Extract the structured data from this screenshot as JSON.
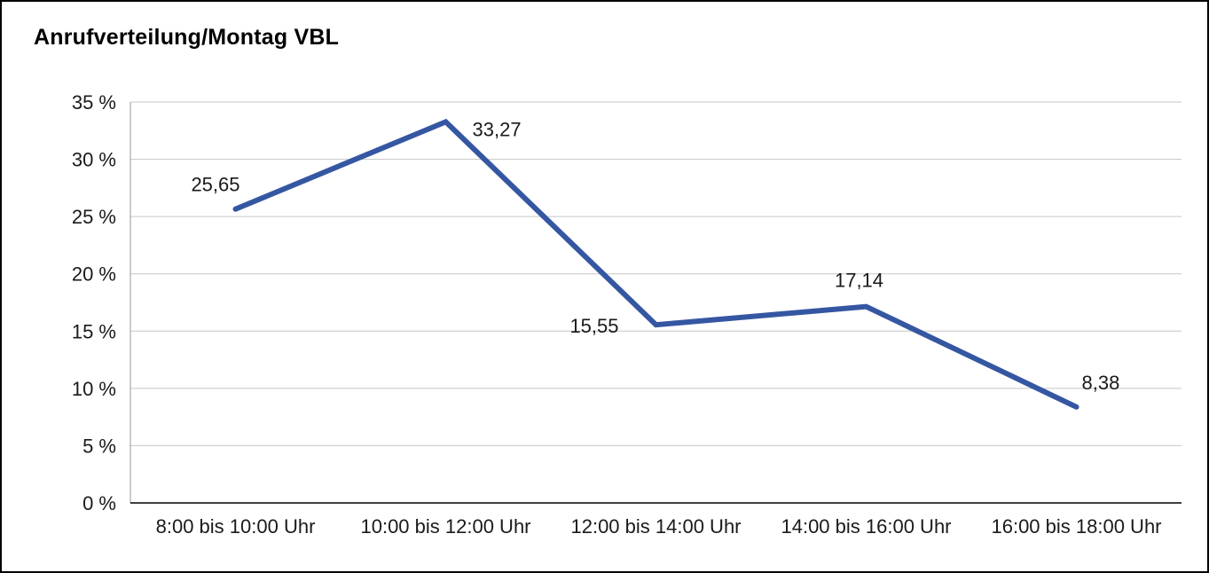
{
  "title": "Anrufverteilung/Montag VBL",
  "chart_data": {
    "type": "line",
    "title": "Anrufverteilung/Montag VBL",
    "categories": [
      "8:00 bis 10:00 Uhr",
      "10:00 bis 12:00 Uhr",
      "12:00 bis 14:00 Uhr",
      "14:00 bis 16:00 Uhr",
      "16:00 bis 18:00 Uhr"
    ],
    "values": [
      25.65,
      33.27,
      15.55,
      17.14,
      8.38
    ],
    "value_labels": [
      "25,65",
      "33,27",
      "15,55",
      "17,14",
      "8,38"
    ],
    "label_positions": [
      "above-left",
      "right",
      "left",
      "above",
      "above-right"
    ],
    "xlabel": "",
    "ylabel": "",
    "ylim": [
      0,
      35
    ],
    "ytick_step": 5,
    "ytick_labels": [
      "0 %",
      "5 %",
      "10 %",
      "15 %",
      "20 %",
      "25 %",
      "30 %",
      "35 %"
    ],
    "grid": "horizontal",
    "legend": "none",
    "line_color": "#3557A2",
    "line_width": 6,
    "grid_color": "#c6c6c6",
    "axis_color": "#000000",
    "y_axis_line_color": "#9a9a9a",
    "text_color": "#1a1a1a"
  }
}
